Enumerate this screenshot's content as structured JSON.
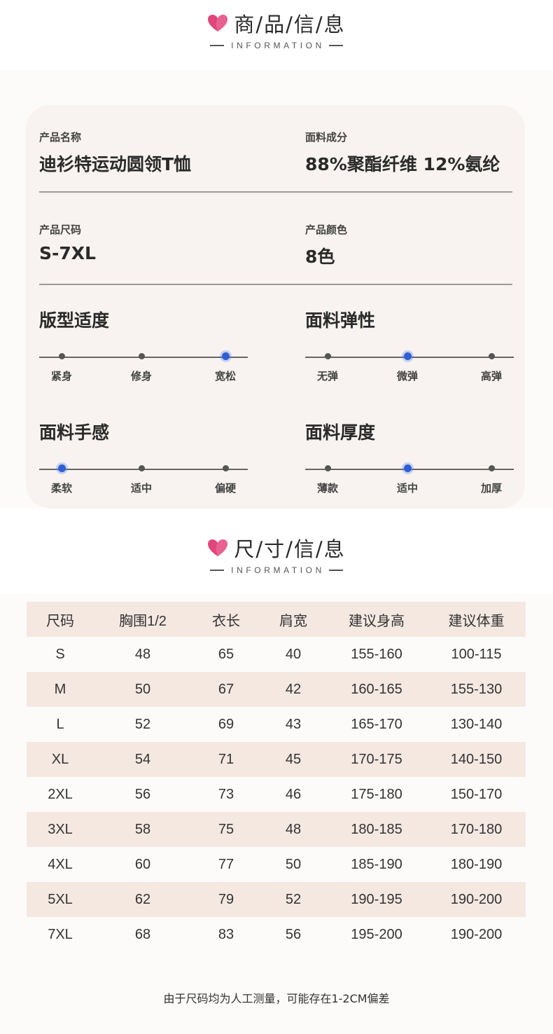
{
  "colors": {
    "accent": "#e0457b",
    "active_dot": "#2f5fd6",
    "card_bg": "#f8f3f0",
    "row_stripe": "#f4e8e1"
  },
  "section1": {
    "icon": "heart-icon",
    "title": "商/品/信/息",
    "subtitle": "INFORMATION"
  },
  "product": {
    "name_label": "产品名称",
    "name_value": "迪衫特运动圆领T恤",
    "fabric_label": "面料成分",
    "fabric_value": "88%聚酯纤维 12%氨纶",
    "size_label": "产品尺码",
    "size_value": "S-7XL",
    "color_label": "产品颜色",
    "color_value": "8色"
  },
  "scales": [
    {
      "title": "版型适度",
      "options": [
        "紧身",
        "修身",
        "宽松"
      ],
      "selected": 2
    },
    {
      "title": "面料弹性",
      "options": [
        "无弹",
        "微弹",
        "高弹"
      ],
      "selected": 1
    },
    {
      "title": "面料手感",
      "options": [
        "柔软",
        "适中",
        "偏硬"
      ],
      "selected": 0
    },
    {
      "title": "面料厚度",
      "options": [
        "薄款",
        "适中",
        "加厚"
      ],
      "selected": 1
    }
  ],
  "section2": {
    "icon": "heart-icon",
    "title": "尺/寸/信/息",
    "subtitle": "INFORMATION"
  },
  "size_table": {
    "headers": [
      "尺码",
      "胸围1/2",
      "衣长",
      "肩宽",
      "建议身高",
      "建议体重"
    ],
    "rows": [
      [
        "S",
        "48",
        "65",
        "40",
        "155-160",
        "100-115"
      ],
      [
        "M",
        "50",
        "67",
        "42",
        "160-165",
        "155-130"
      ],
      [
        "L",
        "52",
        "69",
        "43",
        "165-170",
        "130-140"
      ],
      [
        "XL",
        "54",
        "71",
        "45",
        "170-175",
        "140-150"
      ],
      [
        "2XL",
        "56",
        "73",
        "46",
        "175-180",
        "150-170"
      ],
      [
        "3XL",
        "58",
        "75",
        "48",
        "180-185",
        "170-180"
      ],
      [
        "4XL",
        "60",
        "77",
        "50",
        "185-190",
        "180-190"
      ],
      [
        "5XL",
        "62",
        "79",
        "52",
        "190-195",
        "190-200"
      ],
      [
        "7XL",
        "68",
        "83",
        "56",
        "195-200",
        "190-200"
      ]
    ]
  },
  "note": "由于尺码均为人工测量，可能存在1-2CM偏差"
}
